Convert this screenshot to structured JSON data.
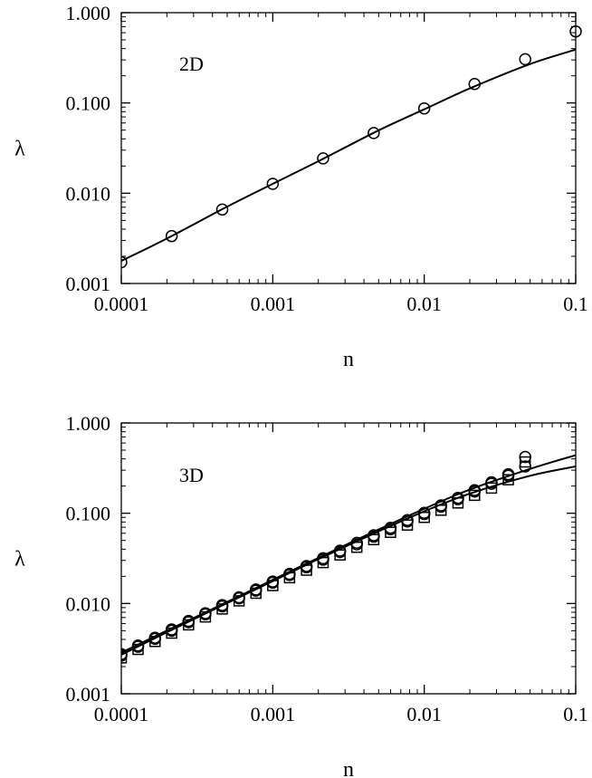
{
  "chart_data": [
    {
      "type": "scatter",
      "panel_label": "2D",
      "xlabel": "n",
      "ylabel": "λ",
      "xscale": "log",
      "yscale": "log",
      "xlim": [
        0.0001,
        0.1
      ],
      "ylim": [
        0.001,
        1.0
      ],
      "x_tick_labels": [
        "0.0001",
        "0.001",
        "0.01",
        "0.1"
      ],
      "x_ticks": [
        0.0001,
        0.001,
        0.01,
        0.1
      ],
      "y_tick_labels": [
        "0.001",
        "0.010",
        "0.100",
        "1.000"
      ],
      "y_ticks": [
        0.001,
        0.01,
        0.1,
        1.0
      ],
      "grid": false,
      "series": [
        {
          "marker": "circle",
          "x": [
            0.0001,
            0.000215,
            0.000464,
            0.001,
            0.00215,
            0.00464,
            0.01,
            0.0215,
            0.0464,
            0.1
          ],
          "y": [
            0.00172,
            0.00335,
            0.0066,
            0.0127,
            0.0243,
            0.0464,
            0.087,
            0.162,
            0.305,
            0.62
          ]
        },
        {
          "style": "line",
          "x": [
            0.0001,
            0.0002,
            0.0005,
            0.001,
            0.002,
            0.005,
            0.01,
            0.02,
            0.05,
            0.1
          ],
          "y": [
            0.00178,
            0.00315,
            0.0071,
            0.0127,
            0.0226,
            0.0497,
            0.085,
            0.145,
            0.27,
            0.39
          ]
        }
      ]
    },
    {
      "type": "scatter",
      "panel_label": "3D",
      "xlabel": "n",
      "ylabel": "λ",
      "xscale": "log",
      "yscale": "log",
      "xlim": [
        0.0001,
        0.1
      ],
      "ylim": [
        0.001,
        1.0
      ],
      "x_tick_labels": [
        "0.0001",
        "0.001",
        "0.01",
        "0.1"
      ],
      "x_ticks": [
        0.0001,
        0.001,
        0.01,
        0.1
      ],
      "y_tick_labels": [
        "0.001",
        "0.010",
        "0.100",
        "1.000"
      ],
      "y_ticks": [
        0.001,
        0.01,
        0.1,
        1.0
      ],
      "grid": false,
      "series": [
        {
          "marker": "circle",
          "x": [
            0.0001,
            0.000129,
            0.000167,
            0.000215,
            0.000278,
            0.000359,
            0.000464,
            0.000599,
            0.000774,
            0.001,
            0.00129,
            0.00167,
            0.00215,
            0.00278,
            0.00359,
            0.00464,
            0.00599,
            0.00774,
            0.01,
            0.0129,
            0.0167,
            0.0215,
            0.0278,
            0.0359,
            0.0464
          ],
          "y": [
            0.00275,
            0.00342,
            0.00418,
            0.00515,
            0.0064,
            0.0078,
            0.0096,
            0.0117,
            0.0143,
            0.0175,
            0.0213,
            0.026,
            0.0317,
            0.0385,
            0.047,
            0.057,
            0.069,
            0.084,
            0.101,
            0.122,
            0.148,
            0.18,
            0.22,
            0.27,
            0.33
          ]
        },
        {
          "marker": "circle",
          "x": [
            0.0001,
            0.000129,
            0.000167,
            0.000215,
            0.000278,
            0.000359,
            0.000464,
            0.000599,
            0.000774,
            0.001,
            0.00129,
            0.00167,
            0.00215,
            0.00278,
            0.00359,
            0.00464,
            0.00599,
            0.00774,
            0.01,
            0.0129,
            0.0167,
            0.0215,
            0.0278,
            0.0359,
            0.0464
          ],
          "y": [
            0.00265,
            0.00332,
            0.00406,
            0.005,
            0.0062,
            0.0076,
            0.0093,
            0.0114,
            0.0139,
            0.017,
            0.0207,
            0.0252,
            0.0306,
            0.0372,
            0.0452,
            0.055,
            0.0665,
            0.081,
            0.098,
            0.118,
            0.143,
            0.174,
            0.212,
            0.26,
            0.42
          ]
        },
        {
          "marker": "square",
          "x": [
            0.0001,
            0.000129,
            0.000167,
            0.000215,
            0.000278,
            0.000359,
            0.000464,
            0.000599,
            0.000774,
            0.001,
            0.00129,
            0.00167,
            0.00215,
            0.00278,
            0.00359,
            0.00464,
            0.00599,
            0.00774,
            0.01,
            0.0129,
            0.0167,
            0.0215,
            0.0278,
            0.0359,
            0.0464
          ],
          "y": [
            0.0025,
            0.0031,
            0.0038,
            0.0047,
            0.0058,
            0.0071,
            0.0087,
            0.0107,
            0.013,
            0.0158,
            0.0193,
            0.0234,
            0.0284,
            0.0345,
            0.042,
            0.051,
            0.0615,
            0.074,
            0.09,
            0.108,
            0.13,
            0.158,
            0.19,
            0.235,
            0.37
          ]
        },
        {
          "style": "line",
          "x": [
            0.0001,
            0.0002,
            0.0005,
            0.001,
            0.002,
            0.005,
            0.01,
            0.02,
            0.05,
            0.1
          ],
          "y": [
            0.00285,
            0.005,
            0.0104,
            0.0183,
            0.032,
            0.066,
            0.112,
            0.183,
            0.31,
            0.44
          ]
        },
        {
          "style": "line",
          "x": [
            0.0001,
            0.0002,
            0.0005,
            0.001,
            0.002,
            0.005,
            0.01,
            0.02,
            0.05,
            0.1
          ],
          "y": [
            0.0027,
            0.0048,
            0.0101,
            0.0177,
            0.031,
            0.063,
            0.105,
            0.165,
            0.26,
            0.33
          ]
        }
      ]
    }
  ]
}
